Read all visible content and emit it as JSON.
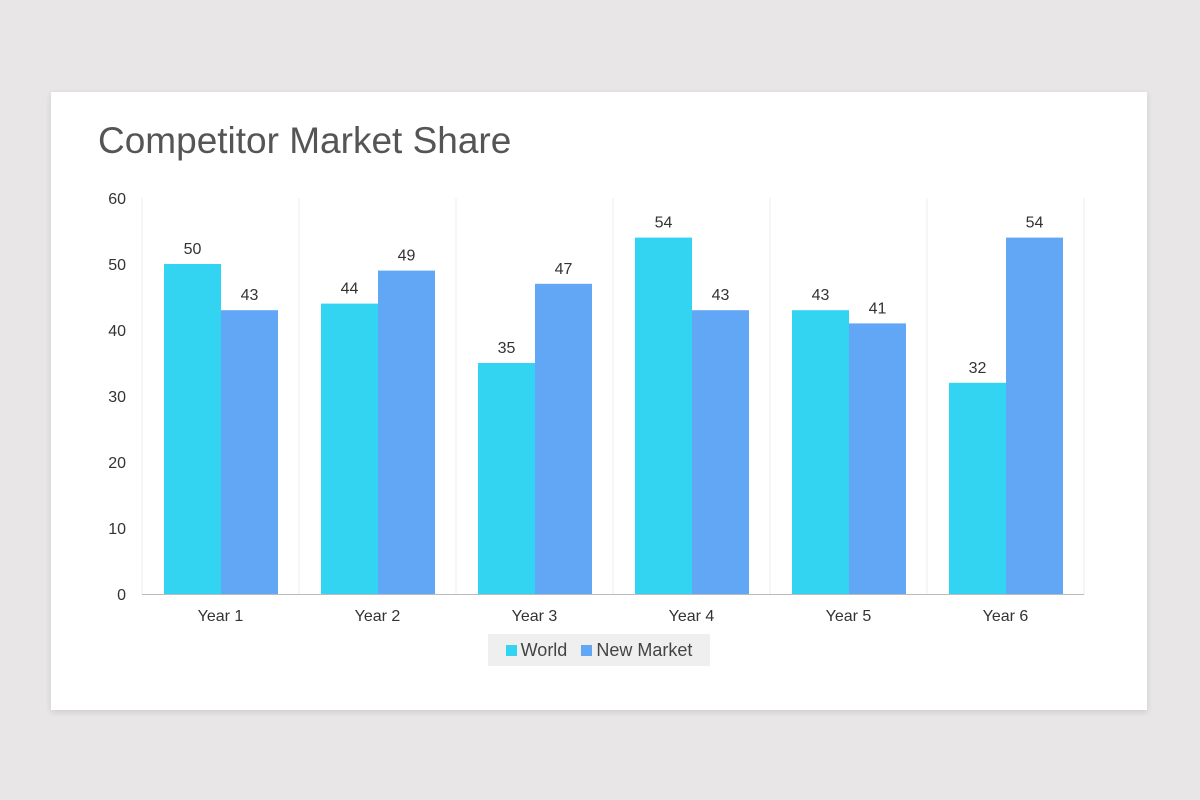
{
  "chart_data": {
    "type": "bar",
    "title": "Competitor Market Share",
    "categories": [
      "Year 1",
      "Year 2",
      "Year 3",
      "Year 4",
      "Year 5",
      "Year 6"
    ],
    "series": [
      {
        "name": "World",
        "values": [
          50,
          44,
          35,
          54,
          43,
          32
        ],
        "color": "#33d4f2"
      },
      {
        "name": "New Market",
        "values": [
          43,
          49,
          47,
          43,
          41,
          54
        ],
        "color": "#62a7f5"
      }
    ],
    "ylim": [
      0,
      60
    ],
    "yticks": [
      0,
      10,
      20,
      30,
      40,
      50,
      60
    ],
    "xlabel": "",
    "ylabel": "",
    "legend": "bottom-center",
    "data_labels": true
  }
}
